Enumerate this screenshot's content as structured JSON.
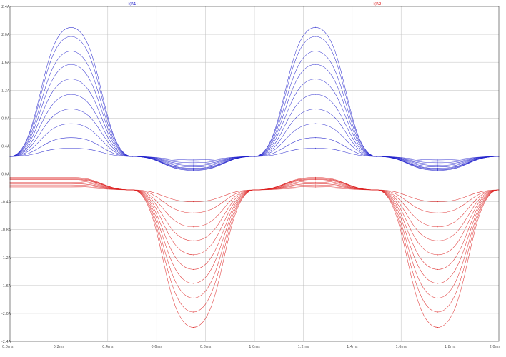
{
  "chart_data": {
    "type": "line",
    "title": "",
    "xlabel": "",
    "ylabel": "",
    "x_unit": "ms",
    "y_unit": "A",
    "xlim": [
      0.0,
      2.0
    ],
    "ylim": [
      -2.4,
      2.4
    ],
    "grid": true,
    "legend": "trace names at top",
    "x_ticks": [
      "0.0ms",
      "0.2ms",
      "0.4ms",
      "0.6ms",
      "0.8ms",
      "1.0ms",
      "1.2ms",
      "1.4ms",
      "1.6ms",
      "1.8ms",
      "2.0ms"
    ],
    "y_ticks": [
      "2.4A",
      "2.0A",
      "1.6A",
      "1.2A",
      "0.8A",
      "0.4A",
      "0.0A",
      "-0.4A",
      "-0.8A",
      "-1.2A",
      "-1.6A",
      "-2.0A",
      "-2.4A"
    ],
    "x": [
      0.0,
      0.25,
      0.5,
      0.75,
      1.0,
      1.25,
      1.5,
      1.75,
      2.0
    ],
    "series": [
      {
        "name": "I(R1)",
        "color": "#2222cc",
        "family": "step-1",
        "values": [
          0.25,
          0.37,
          0.25,
          0.2,
          0.25,
          0.37,
          0.25,
          0.2,
          0.25
        ]
      },
      {
        "name": "I(R1)",
        "color": "#2222cc",
        "family": "step-2",
        "values": [
          0.25,
          0.52,
          0.25,
          0.18,
          0.25,
          0.52,
          0.25,
          0.18,
          0.25
        ]
      },
      {
        "name": "I(R1)",
        "color": "#2222cc",
        "family": "step-3",
        "values": [
          0.25,
          0.72,
          0.25,
          0.16,
          0.25,
          0.72,
          0.25,
          0.16,
          0.25
        ]
      },
      {
        "name": "I(R1)",
        "color": "#2222cc",
        "family": "step-4",
        "values": [
          0.25,
          0.93,
          0.25,
          0.14,
          0.25,
          0.93,
          0.25,
          0.14,
          0.25
        ]
      },
      {
        "name": "I(R1)",
        "color": "#2222cc",
        "family": "step-5",
        "values": [
          0.25,
          1.14,
          0.25,
          0.12,
          0.25,
          1.14,
          0.25,
          0.12,
          0.25
        ]
      },
      {
        "name": "I(R1)",
        "color": "#2222cc",
        "family": "step-6",
        "values": [
          0.25,
          1.36,
          0.25,
          0.1,
          0.25,
          1.36,
          0.25,
          0.1,
          0.25
        ]
      },
      {
        "name": "I(R1)",
        "color": "#2222cc",
        "family": "step-7",
        "values": [
          0.25,
          1.57,
          0.25,
          0.08,
          0.25,
          1.57,
          0.25,
          0.08,
          0.25
        ]
      },
      {
        "name": "I(R1)",
        "color": "#2222cc",
        "family": "step-8",
        "values": [
          0.25,
          1.76,
          0.25,
          0.07,
          0.25,
          1.76,
          0.25,
          0.07,
          0.25
        ]
      },
      {
        "name": "I(R1)",
        "color": "#2222cc",
        "family": "step-9",
        "values": [
          0.25,
          1.97,
          0.25,
          0.06,
          0.25,
          1.97,
          0.25,
          0.06,
          0.25
        ]
      },
      {
        "name": "I(R1)",
        "color": "#2222cc",
        "family": "step-10",
        "values": [
          0.25,
          2.1,
          0.25,
          0.05,
          0.25,
          2.1,
          0.25,
          0.05,
          0.25
        ]
      },
      {
        "name": "-I(R2)",
        "color": "#dd2222",
        "family": "step-1",
        "values": [
          -0.05,
          -0.05,
          -0.23,
          -0.4,
          -0.23,
          -0.05,
          -0.23,
          -0.4,
          -0.23
        ]
      },
      {
        "name": "-I(R2)",
        "color": "#dd2222",
        "family": "step-2",
        "values": [
          -0.06,
          -0.06,
          -0.23,
          -0.56,
          -0.23,
          -0.06,
          -0.23,
          -0.56,
          -0.23
        ]
      },
      {
        "name": "-I(R2)",
        "color": "#dd2222",
        "family": "step-3",
        "values": [
          -0.07,
          -0.07,
          -0.23,
          -0.76,
          -0.23,
          -0.07,
          -0.23,
          -0.76,
          -0.23
        ]
      },
      {
        "name": "-I(R2)",
        "color": "#dd2222",
        "family": "step-4",
        "values": [
          -0.08,
          -0.08,
          -0.23,
          -0.96,
          -0.23,
          -0.08,
          -0.23,
          -0.96,
          -0.23
        ]
      },
      {
        "name": "-I(R2)",
        "color": "#dd2222",
        "family": "step-5",
        "values": [
          -0.1,
          -0.1,
          -0.23,
          -1.16,
          -0.23,
          -0.1,
          -0.23,
          -1.16,
          -0.23
        ]
      },
      {
        "name": "-I(R2)",
        "color": "#dd2222",
        "family": "step-6",
        "values": [
          -0.12,
          -0.12,
          -0.23,
          -1.37,
          -0.23,
          -0.12,
          -0.23,
          -1.37,
          -0.23
        ]
      },
      {
        "name": "-I(R2)",
        "color": "#dd2222",
        "family": "step-7",
        "values": [
          -0.14,
          -0.14,
          -0.23,
          -1.57,
          -0.23,
          -0.14,
          -0.23,
          -1.57,
          -0.23
        ]
      },
      {
        "name": "-I(R2)",
        "color": "#dd2222",
        "family": "step-8",
        "values": [
          -0.16,
          -0.16,
          -0.23,
          -1.78,
          -0.23,
          -0.16,
          -0.23,
          -1.78,
          -0.23
        ]
      },
      {
        "name": "-I(R2)",
        "color": "#dd2222",
        "family": "step-9",
        "values": [
          -0.18,
          -0.18,
          -0.23,
          -1.98,
          -0.23,
          -0.18,
          -0.23,
          -1.98,
          -0.23
        ]
      },
      {
        "name": "-I(R2)",
        "color": "#dd2222",
        "family": "step-10",
        "values": [
          -0.2,
          -0.2,
          -0.23,
          -2.2,
          -0.23,
          -0.2,
          -0.23,
          -2.2,
          -0.23
        ]
      }
    ]
  }
}
